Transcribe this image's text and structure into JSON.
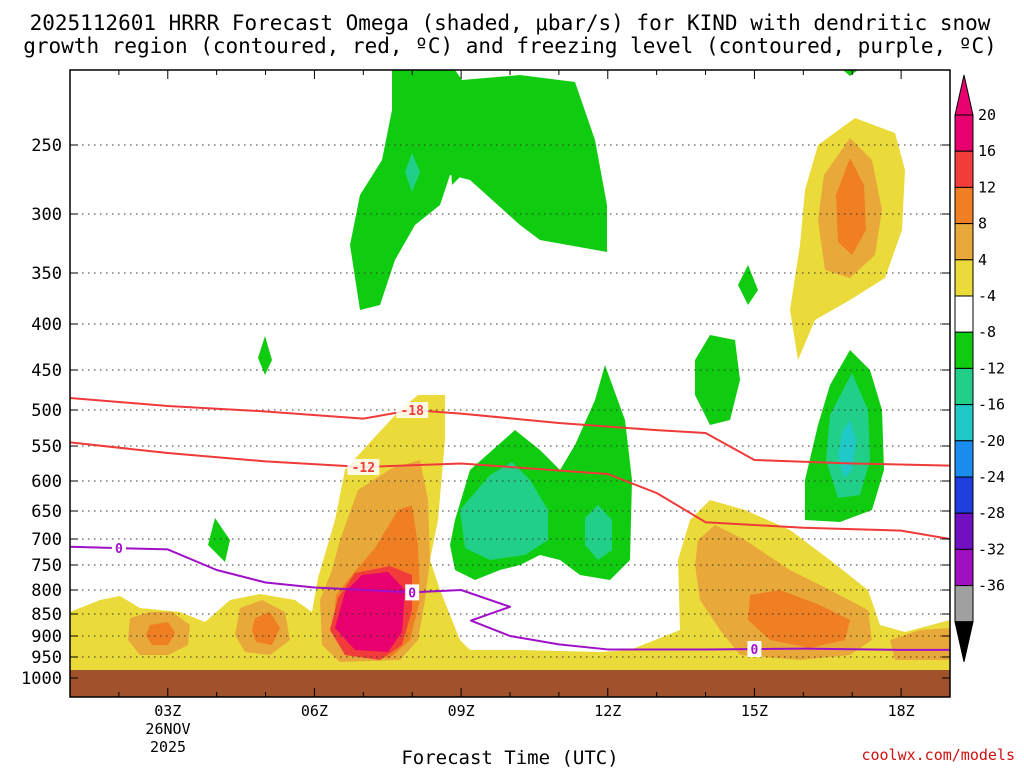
{
  "chart_data": {
    "type": "heatmap",
    "title_line1": "2025112601 HRRR Forecast Omega (shaded, μbar/s) for KIND with dendritic snow",
    "title_line2": "growth region (contoured, red, ºC) and freezing level (contoured, purple, ºC)",
    "xlabel": "Forecast Time (UTC)",
    "x_ticks": [
      {
        "hour": 3,
        "label": "03Z"
      },
      {
        "hour": 6,
        "label": "06Z"
      },
      {
        "hour": 9,
        "label": "09Z"
      },
      {
        "hour": 12,
        "label": "12Z"
      },
      {
        "hour": 15,
        "label": "15Z"
      },
      {
        "hour": 18,
        "label": "18Z"
      }
    ],
    "date_label_line1": "26NOV",
    "date_label_line2": "2025",
    "x_range_hours": [
      1,
      19
    ],
    "y_levels_hpa": [
      250,
      300,
      350,
      400,
      450,
      500,
      550,
      600,
      650,
      700,
      750,
      800,
      850,
      900,
      950,
      1000
    ],
    "y_labels": [
      "250",
      "300",
      "350",
      "400",
      "450",
      "500",
      "550",
      "600",
      "650",
      "700",
      "750",
      "800",
      "850",
      "900",
      "950",
      "1000"
    ],
    "colorbar": {
      "labels": [
        "20",
        "16",
        "12",
        "8",
        "4",
        "-4",
        "-8",
        "-12",
        "-16",
        "-20",
        "-24",
        "-28",
        "-32",
        "-36"
      ],
      "colors": [
        "#e8006e",
        "#f23c3c",
        "#f07e22",
        "#e8a93a",
        "#eadb3a",
        "#ffffff",
        "#10cc10",
        "#22cf88",
        "#20c8c8",
        "#1a8cee",
        "#1f3ee0",
        "#7010c0",
        "#a010c0",
        "#a0a0a0"
      ],
      "top_arrow_color": "#e8006e",
      "bottom_arrow_color": "#000000"
    },
    "red_contours": [
      {
        "label": "-18",
        "points": [
          [
            1,
            485
          ],
          [
            3,
            495
          ],
          [
            5,
            502
          ],
          [
            7,
            512
          ],
          [
            8,
            500
          ],
          [
            9,
            505
          ],
          [
            11,
            518
          ],
          [
            13,
            528
          ],
          [
            14,
            532
          ],
          [
            15,
            570
          ],
          [
            17,
            575
          ],
          [
            19,
            578
          ]
        ]
      },
      {
        "label": "-12",
        "points": [
          [
            1,
            545
          ],
          [
            3,
            560
          ],
          [
            5,
            572
          ],
          [
            7,
            580
          ],
          [
            9,
            575
          ],
          [
            12,
            590
          ],
          [
            13,
            620
          ],
          [
            14,
            670
          ],
          [
            16,
            680
          ],
          [
            18,
            685
          ],
          [
            19,
            700
          ]
        ]
      }
    ],
    "freezing_level": {
      "label": "0",
      "label_positions": [
        2,
        8,
        15
      ],
      "points": [
        [
          1,
          715
        ],
        [
          3,
          720
        ],
        [
          4,
          760
        ],
        [
          5,
          785
        ],
        [
          6,
          795
        ],
        [
          8,
          805
        ],
        [
          9,
          800
        ],
        [
          10,
          835
        ],
        [
          9.2,
          865
        ],
        [
          10,
          900
        ],
        [
          11,
          920
        ],
        [
          12,
          932
        ],
        [
          14,
          932
        ],
        [
          16,
          930
        ],
        [
          18,
          933
        ],
        [
          19,
          933
        ]
      ]
    },
    "ground_color": "#a0522d",
    "credit": "coolwx.com/models"
  }
}
